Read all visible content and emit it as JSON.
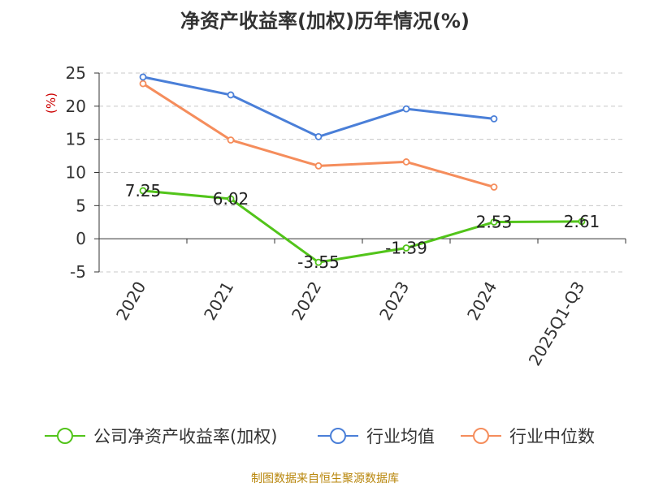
{
  "chart_data": {
    "type": "line",
    "title": "净资产收益率(加权)历年情况(%)",
    "ylabel": "(%)",
    "categories": [
      "2020",
      "2021",
      "2022",
      "2023",
      "2024",
      "2025Q1-Q3"
    ],
    "ylim": [
      -5,
      25
    ],
    "yticks": [
      -5,
      0,
      5,
      10,
      15,
      20,
      25
    ],
    "grid": true,
    "legend_position": "bottom",
    "series": [
      {
        "name": "公司净资产收益率(加权)",
        "color": "#52c41a",
        "values": [
          7.25,
          6.02,
          -3.55,
          -1.39,
          2.53,
          2.61
        ],
        "labels": [
          "7.25",
          "6.02",
          "-3.55",
          "-1.39",
          "2.53",
          "2.61"
        ]
      },
      {
        "name": "行业均值",
        "color": "#4a7fd8",
        "values": [
          24.4,
          21.7,
          15.4,
          19.6,
          18.1,
          null
        ]
      },
      {
        "name": "行业中位数",
        "color": "#f58d5c",
        "values": [
          23.4,
          14.9,
          11.0,
          11.6,
          7.8,
          null
        ]
      }
    ]
  },
  "source_note": "制图数据来自恒生聚源数据库"
}
